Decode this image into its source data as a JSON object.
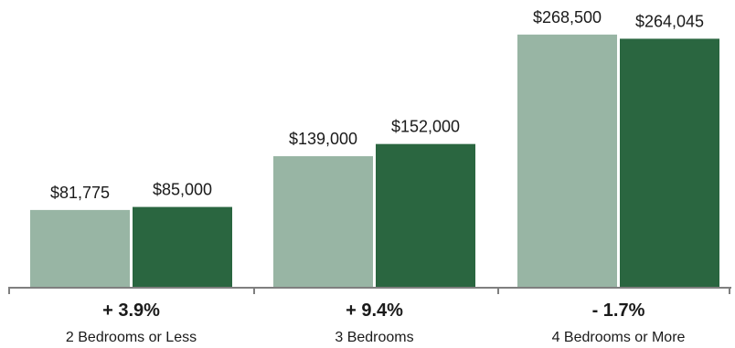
{
  "chart_data": {
    "type": "bar",
    "categories": [
      "2 Bedrooms or Less",
      "3 Bedrooms",
      "4 Bedrooms or More"
    ],
    "changes": [
      "+ 3.9%",
      "+ 9.4%",
      "- 1.7%"
    ],
    "series": [
      {
        "values": [
          81775,
          139000,
          268500
        ],
        "labels": [
          "$81,775",
          "$139,000",
          "$268,500"
        ],
        "color": "#98b5a4"
      },
      {
        "values": [
          85000,
          152000,
          264045
        ],
        "labels": [
          "$85,000",
          "$152,000",
          "$264,045"
        ],
        "color": "#2a6640"
      }
    ],
    "ylim": [
      0,
      280000
    ],
    "axis_color": "#7f7f7f",
    "grid": false,
    "legend": "none"
  }
}
